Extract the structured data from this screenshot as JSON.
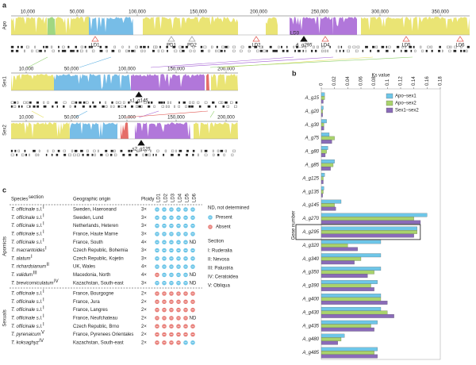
{
  "panel_a": {
    "label": "a",
    "tracks": [
      {
        "name": "Apo",
        "ticks": [
          "10,000",
          "50,000",
          "100,000",
          "150,000",
          "200,000",
          "250,000",
          "300,000",
          "350,000"
        ],
        "markers": [
          "LD1",
          "PD1",
          "PD2",
          "LD2",
          "LD3",
          "A_g295",
          "LD4",
          "LD5",
          "LD6"
        ]
      },
      {
        "name": "Sex1",
        "ticks": [
          "10,000",
          "50,000",
          "100,000",
          "150,000",
          "200,000"
        ],
        "markers": [
          "s1_g145"
        ]
      },
      {
        "name": "Sex2",
        "ticks": [
          "10,000",
          "50,000",
          "100,000",
          "150,000",
          "200,000"
        ],
        "markers": [
          "s2_g125"
        ]
      }
    ]
  },
  "chart_data": {
    "type": "bar",
    "label": "b",
    "orientation": "horizontal",
    "x_label": "Ks value",
    "y_label": "Gene number",
    "categories": [
      "A_g15",
      "A_g20",
      "A_g30",
      "A_g75",
      "A_g80",
      "A_g85",
      "A_g125",
      "A_g135",
      "A_g145",
      "A_g270",
      "A_g295",
      "A_g320",
      "A_g340",
      "A_g350",
      "A_g390",
      "A_g400",
      "A_g430",
      "A_g435",
      "A_g480",
      "A_g485"
    ],
    "series": [
      {
        "name": "Apo–sex1",
        "color": "#6ec6e8",
        "values": [
          0.005,
          0.003,
          0.008,
          0.012,
          0.01,
          0.02,
          0.005,
          0.004,
          0.03,
          0.16,
          0.145,
          0.09,
          0.09,
          0.09,
          0.085,
          0.09,
          0.09,
          0.085,
          0.035,
          0.085
        ]
      },
      {
        "name": "Apo–sex2",
        "color": "#a9d36c",
        "values": [
          0.005,
          0.002,
          0.004,
          0.02,
          0.008,
          0.018,
          0.003,
          0.003,
          0.02,
          0.14,
          0.145,
          0.04,
          0.06,
          0.08,
          0.075,
          0.09,
          0.1,
          0.075,
          0.03,
          0.08
        ]
      },
      {
        "name": "Sex1–sex2",
        "color": "#8a6bb8",
        "values": [
          0.003,
          0.002,
          0.004,
          0.016,
          0.006,
          0.014,
          0.003,
          0.002,
          0.022,
          0.15,
          0.14,
          0.055,
          0.05,
          0.07,
          0.08,
          0.1,
          0.11,
          0.08,
          0.025,
          0.085
        ]
      }
    ],
    "highlight": "A_g295",
    "xlim": [
      0,
      0.18
    ],
    "xticks": [
      0,
      0.02,
      0.04,
      0.06,
      0.08,
      0.1,
      0.12,
      0.14,
      0.16,
      0.18
    ],
    "legend": "upper right"
  },
  "panel_c": {
    "label": "c",
    "header": [
      "Species",
      "Geographic origin",
      "Ploidy",
      "LD1",
      "LD2",
      "LD3",
      "LD4",
      "LD5",
      "LD6"
    ],
    "header_superscript": "section",
    "groups": [
      {
        "name": "Apomicts",
        "rows": [
          {
            "species": "T. officinale s.l.",
            "section": "I",
            "origin": "Sweden, Haeroeand",
            "ploidy": "3×",
            "ld": [
              "Present",
              "Present",
              "Present",
              "Present",
              "Present",
              "Present"
            ]
          },
          {
            "species": "T. officinale s.l.",
            "section": "I",
            "origin": "Sweden, Lund",
            "ploidy": "3×",
            "ld": [
              "Present",
              "Present",
              "Present",
              "Present",
              "Present",
              "Present"
            ]
          },
          {
            "species": "T. officinale s.l.",
            "section": "I",
            "origin": "Netherlands, Heteren",
            "ploidy": "3×",
            "ld": [
              "Present",
              "Present",
              "Present",
              "Present",
              "Present",
              "Present"
            ]
          },
          {
            "species": "T. officinale s.l.",
            "section": "I",
            "origin": "France, Haute Marne",
            "ploidy": "3×",
            "ld": [
              "Present",
              "Present",
              "Present",
              "Present",
              "Present",
              "Present"
            ]
          },
          {
            "species": "T. officinale s.l.",
            "section": "I",
            "origin": "France, South",
            "ploidy": "4×",
            "ld": [
              "Present",
              "Present",
              "Present",
              "Present",
              "Present",
              "ND"
            ]
          },
          {
            "species": "T. macrantoides",
            "section": "I",
            "origin": "Czech Republic, Bohemia",
            "ploidy": "3×",
            "ld": [
              "Present",
              "Present",
              "Present",
              "Present",
              "Present",
              "Present"
            ]
          },
          {
            "species": "T. alatum",
            "section": "I",
            "origin": "Czech Republic, Kojetin",
            "ploidy": "3×",
            "ld": [
              "Present",
              "Present",
              "Present",
              "Present",
              "Present",
              "Present"
            ]
          },
          {
            "species": "T. richardsianum",
            "section": "II",
            "origin": "UK, Wales",
            "ploidy": "4×",
            "ld": [
              "Present",
              "Present",
              "Present",
              "Present",
              "Present",
              "Present"
            ]
          },
          {
            "species": "T. validum",
            "section": "III",
            "origin": "Macedonia, North",
            "ploidy": "4×",
            "ld": [
              "Absent",
              "Present",
              "Present",
              "Present",
              "Present",
              "ND"
            ]
          },
          {
            "species": "T. brevicorniculatum",
            "section": "IV",
            "origin": "Kazachstan, South-east",
            "ploidy": "3×",
            "ld": [
              "Present",
              "Present",
              "Present",
              "Present",
              "Present",
              "ND"
            ]
          }
        ]
      },
      {
        "name": "Sexuals",
        "rows": [
          {
            "species": "T. officinale s.l.",
            "section": "I",
            "origin": "France, Bourgogne",
            "ploidy": "2×",
            "ld": [
              "Absent",
              "Absent",
              "Absent",
              "Absent",
              "Absent",
              "Absent"
            ]
          },
          {
            "species": "T. officinale s.l.",
            "section": "I",
            "origin": "France, Jura",
            "ploidy": "2×",
            "ld": [
              "Absent",
              "Absent",
              "Absent",
              "Absent",
              "Absent",
              "Absent"
            ]
          },
          {
            "species": "T. officinale s.l.",
            "section": "I",
            "origin": "France, Langres",
            "ploidy": "2×",
            "ld": [
              "Absent",
              "Absent",
              "Absent",
              "Absent",
              "Absent",
              "Absent"
            ]
          },
          {
            "species": "T. officinale s.l.",
            "section": "I",
            "origin": "France, Neufchateau",
            "ploidy": "2×",
            "ld": [
              "Absent",
              "Absent",
              "Absent",
              "Absent",
              "Absent",
              "ND"
            ]
          },
          {
            "species": "T. officinale s.l.",
            "section": "I",
            "origin": "Czech Republic, Brno",
            "ploidy": "2×",
            "ld": [
              "Absent",
              "Absent",
              "Absent",
              "Absent",
              "Absent",
              "Absent"
            ]
          },
          {
            "species": "T. pyrenaicum",
            "section": "V",
            "origin": "France, Pyrenees Orientales",
            "ploidy": "2×",
            "ld": [
              "Absent",
              "Absent",
              "Absent",
              "Absent",
              "Absent",
              "Absent"
            ]
          },
          {
            "species": "T. koksaghyz",
            "section": "IV",
            "origin": "Kazachstan, South-east",
            "ploidy": "2×",
            "ld": [
              "Absent",
              "Absent",
              "Absent",
              "Absent",
              "Present",
              "Present"
            ]
          }
        ]
      }
    ],
    "legend": {
      "nd": "ND, not determined",
      "present": "Present",
      "absent": "Absent",
      "section_title": "Section",
      "sections": [
        "I: Ruderalia",
        "II: Nevosa",
        "III: Palustria",
        "IV: Ceratoidea",
        "V: Obliqua"
      ]
    }
  }
}
